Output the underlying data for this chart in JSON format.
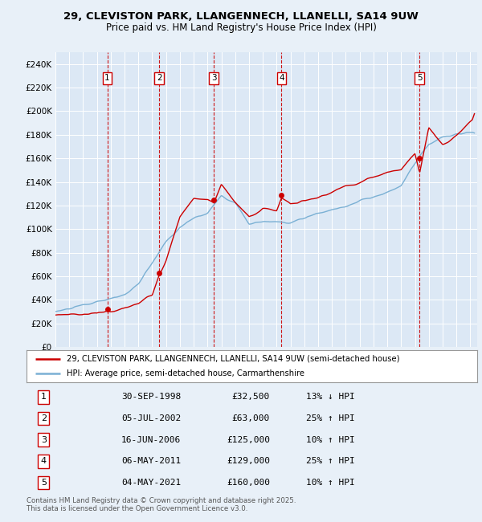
{
  "title1": "29, CLEVISTON PARK, LLANGENNECH, LLANELLI, SA14 9UW",
  "title2": "Price paid vs. HM Land Registry's House Price Index (HPI)",
  "ylim": [
    0,
    250000
  ],
  "yticks": [
    0,
    20000,
    40000,
    60000,
    80000,
    100000,
    120000,
    140000,
    160000,
    180000,
    200000,
    220000,
    240000
  ],
  "xlim_start": 1995.0,
  "xlim_end": 2025.5,
  "sale_dates": [
    1998.75,
    2002.5,
    2006.46,
    2011.35,
    2021.34
  ],
  "sale_prices": [
    32500,
    63000,
    125000,
    129000,
    160000
  ],
  "sale_labels": [
    "1",
    "2",
    "3",
    "4",
    "5"
  ],
  "sale_pct": [
    "13% ↓ HPI",
    "25% ↑ HPI",
    "10% ↑ HPI",
    "25% ↑ HPI",
    "10% ↑ HPI"
  ],
  "sale_date_str": [
    "30-SEP-1998",
    "05-JUL-2002",
    "16-JUN-2006",
    "06-MAY-2011",
    "04-MAY-2021"
  ],
  "sale_price_str": [
    "£32,500",
    "£63,000",
    "£125,000",
    "£129,000",
    "£160,000"
  ],
  "legend_label_red": "29, CLEVISTON PARK, LLANGENNECH, LLANELLI, SA14 9UW (semi-detached house)",
  "legend_label_blue": "HPI: Average price, semi-detached house, Carmarthenshire",
  "footer": "Contains HM Land Registry data © Crown copyright and database right 2025.\nThis data is licensed under the Open Government Licence v3.0.",
  "bg_color": "#e8f0f8",
  "plot_bg_color": "#dce8f5",
  "red_color": "#cc0000",
  "blue_color": "#7ab0d4",
  "hpi_key_points": [
    [
      1995.0,
      30000
    ],
    [
      1996.0,
      32000
    ],
    [
      1997.0,
      34000
    ],
    [
      1998.0,
      36000
    ],
    [
      1999.0,
      38000
    ],
    [
      2000.0,
      42000
    ],
    [
      2001.0,
      52000
    ],
    [
      2002.0,
      68000
    ],
    [
      2003.0,
      85000
    ],
    [
      2004.0,
      98000
    ],
    [
      2005.0,
      105000
    ],
    [
      2006.0,
      110000
    ],
    [
      2007.0,
      125000
    ],
    [
      2008.0,
      120000
    ],
    [
      2009.0,
      102000
    ],
    [
      2010.0,
      103000
    ],
    [
      2011.0,
      101000
    ],
    [
      2012.0,
      100000
    ],
    [
      2013.0,
      103000
    ],
    [
      2014.0,
      107000
    ],
    [
      2015.0,
      110000
    ],
    [
      2016.0,
      114000
    ],
    [
      2017.0,
      118000
    ],
    [
      2018.0,
      122000
    ],
    [
      2019.0,
      126000
    ],
    [
      2020.0,
      132000
    ],
    [
      2021.0,
      150000
    ],
    [
      2022.0,
      170000
    ],
    [
      2023.0,
      175000
    ],
    [
      2024.0,
      178000
    ],
    [
      2025.3,
      180000
    ]
  ],
  "prop_key_points": [
    [
      1995.0,
      27000
    ],
    [
      1996.0,
      28000
    ],
    [
      1997.0,
      29000
    ],
    [
      1998.0,
      30000
    ],
    [
      1998.75,
      32500
    ],
    [
      1999.0,
      31000
    ],
    [
      2000.0,
      33000
    ],
    [
      2001.0,
      36000
    ],
    [
      2002.0,
      44000
    ],
    [
      2002.5,
      63000
    ],
    [
      2003.0,
      75000
    ],
    [
      2004.0,
      112000
    ],
    [
      2005.0,
      128000
    ],
    [
      2006.0,
      128000
    ],
    [
      2006.46,
      125000
    ],
    [
      2007.0,
      140000
    ],
    [
      2008.0,
      125000
    ],
    [
      2009.0,
      112000
    ],
    [
      2010.0,
      120000
    ],
    [
      2011.0,
      118000
    ],
    [
      2011.35,
      129000
    ],
    [
      2012.0,
      125000
    ],
    [
      2013.0,
      128000
    ],
    [
      2014.0,
      132000
    ],
    [
      2015.0,
      138000
    ],
    [
      2016.0,
      143000
    ],
    [
      2017.0,
      148000
    ],
    [
      2018.0,
      153000
    ],
    [
      2019.0,
      158000
    ],
    [
      2020.0,
      160000
    ],
    [
      2021.0,
      175000
    ],
    [
      2021.34,
      160000
    ],
    [
      2022.0,
      198000
    ],
    [
      2023.0,
      185000
    ],
    [
      2024.0,
      192000
    ],
    [
      2025.3,
      204000
    ]
  ]
}
